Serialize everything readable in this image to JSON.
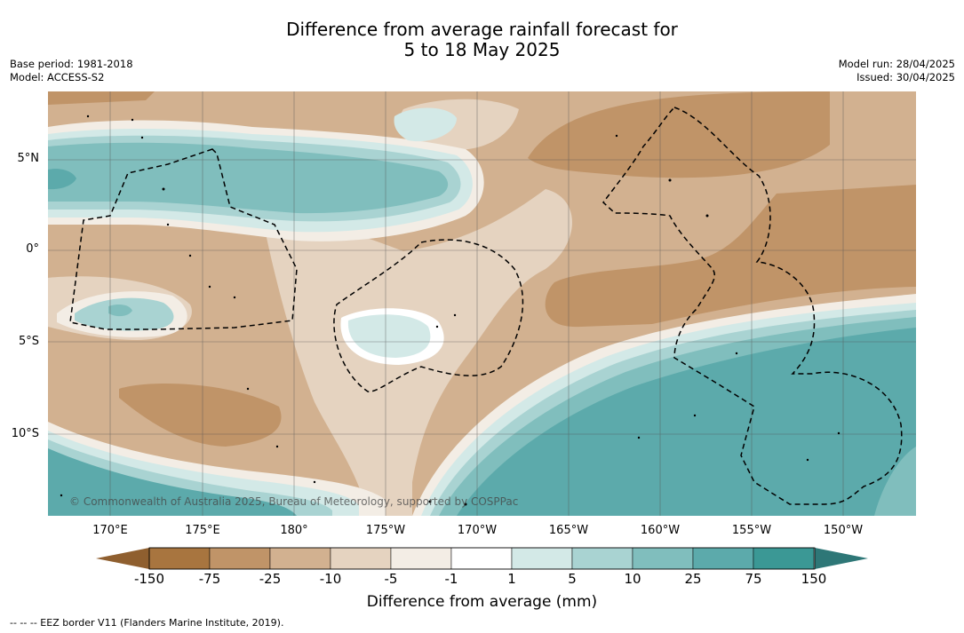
{
  "title": {
    "line1": "Difference from average rainfall forecast for",
    "line2": "5 to 18 May 2025"
  },
  "meta": {
    "base_period": "Base period: 1981-2018",
    "model": "Model: ACCESS-S2",
    "model_run": "Model run: 28/04/2025",
    "issued": "Issued: 30/04/2025"
  },
  "map": {
    "lat_labels": [
      "5°N",
      "0°",
      "5°S",
      "10°S"
    ],
    "lon_labels": [
      "170°E",
      "175°E",
      "180°",
      "175°W",
      "170°W",
      "165°W",
      "160°W",
      "155°W",
      "150°W"
    ],
    "copyright": "© Commonwealth of Australia 2025, Bureau of Meteorology, supported by COSPPac",
    "eez_border_style": "dashed black"
  },
  "colorbar": {
    "title": "Difference from average (mm)",
    "ticks": [
      "-150",
      "-75",
      "-25",
      "-10",
      "-5",
      "-1",
      "1",
      "5",
      "10",
      "25",
      "75",
      "150"
    ],
    "colors": {
      "below_min": "#8f5f2f",
      "bins": [
        "#a8753f",
        "#c09468",
        "#d2b190",
        "#e5d3c0",
        "#f3ede5",
        "#ffffff",
        "#d3e9e7",
        "#a9d3d2",
        "#80bebd",
        "#5caaab",
        "#3b9895"
      ],
      "above_max": "#2e7777"
    }
  },
  "footnote": "--  --  -- EEZ border V11 (Flanders Marine Institute, 2019)."
}
